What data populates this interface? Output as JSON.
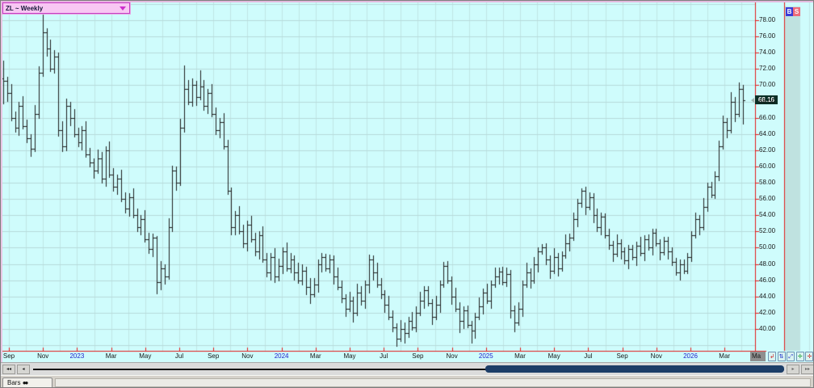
{
  "symbol_selector": {
    "label": "ZL ~ Weekly"
  },
  "trade_buttons": {
    "buy_label": "B",
    "sell_label": "S"
  },
  "price_flag": {
    "value": "68.16"
  },
  "x_axis": {
    "current_label": "Ma",
    "labels": [
      {
        "text": "Sep",
        "type": "month"
      },
      {
        "text": "Nov",
        "type": "month"
      },
      {
        "text": "2023",
        "type": "year"
      },
      {
        "text": "Mar",
        "type": "month"
      },
      {
        "text": "May",
        "type": "month"
      },
      {
        "text": "Jul",
        "type": "month"
      },
      {
        "text": "Sep",
        "type": "month"
      },
      {
        "text": "Nov",
        "type": "month"
      },
      {
        "text": "2024",
        "type": "year"
      },
      {
        "text": "Mar",
        "type": "month"
      },
      {
        "text": "May",
        "type": "month"
      },
      {
        "text": "Jul",
        "type": "month"
      },
      {
        "text": "Sep",
        "type": "month"
      },
      {
        "text": "Nov",
        "type": "month"
      },
      {
        "text": "2025",
        "type": "year"
      },
      {
        "text": "Mar",
        "type": "month"
      },
      {
        "text": "May",
        "type": "month"
      },
      {
        "text": "Jul",
        "type": "month"
      },
      {
        "text": "Sep",
        "type": "month"
      },
      {
        "text": "Nov",
        "type": "month"
      },
      {
        "text": "2026",
        "type": "year"
      },
      {
        "text": "Mar",
        "type": "month"
      }
    ]
  },
  "nav_buttons": [
    {
      "name": "scale-reset-button",
      "glyph": "↲",
      "color": "#cc2222"
    },
    {
      "name": "auto-scale-button",
      "glyph": "⇅",
      "color": "#2233cc"
    },
    {
      "name": "zoom-x-button",
      "glyph": "⤢",
      "color": "#2233cc"
    },
    {
      "name": "zoom-in-button",
      "glyph": "✛",
      "color": "#119922"
    },
    {
      "name": "zoom-out-button",
      "glyph": "✛",
      "color": "#cc2222"
    }
  ],
  "scrollbar": {
    "buttons": [
      {
        "name": "scroll-left-fast-button",
        "glyph": "◂◂"
      },
      {
        "name": "scroll-left-button",
        "glyph": "◂"
      },
      {
        "name": "scroll-right-button",
        "glyph": "▸"
      },
      {
        "name": "scroll-right-fast-button",
        "glyph": "▸▸"
      }
    ]
  },
  "tabs": [
    {
      "label": "Bars",
      "icon": "●●"
    }
  ],
  "colors": {
    "background": "#cffcfc",
    "grid_h": "#b6dada",
    "grid_v": "#c0e6e4",
    "axis_red": "#e41b1b",
    "bar": "#1e1e1e",
    "strip": "#bfe2e0",
    "thumb": "#1d3e68",
    "dropdown_bg": "#f8c7f3",
    "dropdown_border": "#c33fc3",
    "flag_bg": "#0b2f26",
    "buy_bg": "#3b3bd6",
    "sell_bg": "#ee6b7a",
    "year_label": "#2121cc"
  },
  "chart_data": {
    "type": "ohlc-bar",
    "title": "ZL ~ Weekly",
    "symbol": "ZL",
    "interval": "Weekly",
    "last_price": 68.16,
    "x_range": [
      "Sep 2022",
      "May 2026"
    ],
    "ylim": [
      37.5,
      79.0
    ],
    "y_ticks": [
      78,
      76,
      74,
      72,
      70,
      68,
      66,
      64,
      62,
      60,
      58,
      56,
      54,
      52,
      50,
      48,
      46,
      44,
      42,
      40
    ],
    "grid": true,
    "bars_format": [
      "open",
      "high",
      "low",
      "close"
    ],
    "bars": [
      [
        70.8,
        73.0,
        67.7,
        70.5
      ],
      [
        70.5,
        71.0,
        68.0,
        69.0
      ],
      [
        69.0,
        70.1,
        65.6,
        66.0
      ],
      [
        66.0,
        66.8,
        64.2,
        64.8
      ],
      [
        64.8,
        68.0,
        63.8,
        67.5
      ],
      [
        67.5,
        68.6,
        64.6,
        65.0
      ],
      [
        65.0,
        65.8,
        62.9,
        63.5
      ],
      [
        63.5,
        64.0,
        61.2,
        62.2
      ],
      [
        62.2,
        67.6,
        61.8,
        66.5
      ],
      [
        66.5,
        72.3,
        65.9,
        71.5
      ],
      [
        71.5,
        78.7,
        71.0,
        76.5
      ],
      [
        76.5,
        77.0,
        73.5,
        74.5
      ],
      [
        74.5,
        75.6,
        71.6,
        72.0
      ],
      [
        72.0,
        74.3,
        71.4,
        73.5
      ],
      [
        73.5,
        74.0,
        63.7,
        64.5
      ],
      [
        64.5,
        65.6,
        61.8,
        62.5
      ],
      [
        62.5,
        68.3,
        61.9,
        67.5
      ],
      [
        67.5,
        68.0,
        65.0,
        66.0
      ],
      [
        66.0,
        67.1,
        63.6,
        64.0
      ],
      [
        64.0,
        64.8,
        62.4,
        63.0
      ],
      [
        63.0,
        65.0,
        62.0,
        64.5
      ],
      [
        64.5,
        65.6,
        61.1,
        61.5
      ],
      [
        61.5,
        62.3,
        59.9,
        60.5
      ],
      [
        60.5,
        61.0,
        58.5,
        59.5
      ],
      [
        59.5,
        62.1,
        59.1,
        61.0
      ],
      [
        61.0,
        61.8,
        57.9,
        58.5
      ],
      [
        58.5,
        62.5,
        57.5,
        62.0
      ],
      [
        62.0,
        63.1,
        58.6,
        59.0
      ],
      [
        59.0,
        59.8,
        56.9,
        57.5
      ],
      [
        57.5,
        59.0,
        56.5,
        58.5
      ],
      [
        58.5,
        59.6,
        55.6,
        56.0
      ],
      [
        56.0,
        56.8,
        54.2,
        54.8
      ],
      [
        54.8,
        56.7,
        53.8,
        56.2
      ],
      [
        56.2,
        57.3,
        53.6,
        54.0
      ],
      [
        54.0,
        54.8,
        51.9,
        52.5
      ],
      [
        52.5,
        54.0,
        51.5,
        53.5
      ],
      [
        53.5,
        54.6,
        50.6,
        51.0
      ],
      [
        51.0,
        51.8,
        49.2,
        49.8
      ],
      [
        49.8,
        51.7,
        48.8,
        51.2
      ],
      [
        51.2,
        51.4,
        44.3,
        45.8
      ],
      [
        45.8,
        48.3,
        44.8,
        47.5
      ],
      [
        47.5,
        48.0,
        45.5,
        46.5
      ],
      [
        46.5,
        53.6,
        46.1,
        52.5
      ],
      [
        52.5,
        60.1,
        51.9,
        59.5
      ],
      [
        59.5,
        60.0,
        57.0,
        58.0
      ],
      [
        58.0,
        65.9,
        57.6,
        64.8
      ],
      [
        64.8,
        72.4,
        64.2,
        69.5
      ],
      [
        69.5,
        70.6,
        67.6,
        68.0
      ],
      [
        68.0,
        70.8,
        67.4,
        70.0
      ],
      [
        70.0,
        70.5,
        67.5,
        68.5
      ],
      [
        68.5,
        71.8,
        68.1,
        69.8
      ],
      [
        69.8,
        70.6,
        66.9,
        67.5
      ],
      [
        67.5,
        69.5,
        66.5,
        69.0
      ],
      [
        69.0,
        70.1,
        66.1,
        66.5
      ],
      [
        66.5,
        67.3,
        63.9,
        64.5
      ],
      [
        64.5,
        66.0,
        63.5,
        65.5
      ],
      [
        65.5,
        66.6,
        62.1,
        62.5
      ],
      [
        62.5,
        63.3,
        56.5,
        57.0
      ],
      [
        57.0,
        57.4,
        51.5,
        52.5
      ],
      [
        52.5,
        54.5,
        51.5,
        54.0
      ],
      [
        54.0,
        55.1,
        51.6,
        52.0
      ],
      [
        52.0,
        52.8,
        49.9,
        50.5
      ],
      [
        50.5,
        53.3,
        49.5,
        52.8
      ],
      [
        52.8,
        53.9,
        50.6,
        51.0
      ],
      [
        51.0,
        51.8,
        48.9,
        49.5
      ],
      [
        49.5,
        52.0,
        48.5,
        51.5
      ],
      [
        51.5,
        52.6,
        48.1,
        48.5
      ],
      [
        48.5,
        49.3,
        46.4,
        47.0
      ],
      [
        47.0,
        49.3,
        46.0,
        48.8
      ],
      [
        48.8,
        49.9,
        45.7,
        46.5
      ],
      [
        46.5,
        48.6,
        45.9,
        47.8
      ],
      [
        47.8,
        50.0,
        46.8,
        49.5
      ],
      [
        49.5,
        50.6,
        47.1,
        47.5
      ],
      [
        47.5,
        49.3,
        46.9,
        48.5
      ],
      [
        48.5,
        49.0,
        46.0,
        47.0
      ],
      [
        47.0,
        48.1,
        45.6,
        46.0
      ],
      [
        46.0,
        48.0,
        45.4,
        47.2
      ],
      [
        47.2,
        47.7,
        44.2,
        45.2
      ],
      [
        45.2,
        46.3,
        43.1,
        44.3
      ],
      [
        44.3,
        46.3,
        43.9,
        45.5
      ],
      [
        45.5,
        48.5,
        44.5,
        48.0
      ],
      [
        48.0,
        49.3,
        47.0,
        48.8
      ],
      [
        48.8,
        49.2,
        47.1,
        47.5
      ],
      [
        47.5,
        49.1,
        46.9,
        48.5
      ],
      [
        48.5,
        49.0,
        45.5,
        46.5
      ],
      [
        46.5,
        47.6,
        44.8,
        45.2
      ],
      [
        45.2,
        46.0,
        43.2,
        43.8
      ],
      [
        43.8,
        44.3,
        41.5,
        42.5
      ],
      [
        42.5,
        44.6,
        42.1,
        43.5
      ],
      [
        43.5,
        44.0,
        40.8,
        42.0
      ],
      [
        42.0,
        45.6,
        41.6,
        44.5
      ],
      [
        44.5,
        45.3,
        42.9,
        43.5
      ],
      [
        43.5,
        46.0,
        42.5,
        45.5
      ],
      [
        45.5,
        49.1,
        44.4,
        48.5
      ],
      [
        48.5,
        49.0,
        46.0,
        47.0
      ],
      [
        47.0,
        48.1,
        45.1,
        45.5
      ],
      [
        45.5,
        46.3,
        43.7,
        44.3
      ],
      [
        44.3,
        44.8,
        42.0,
        43.0
      ],
      [
        43.0,
        44.1,
        41.1,
        41.5
      ],
      [
        41.5,
        42.3,
        39.6,
        40.2
      ],
      [
        40.2,
        40.7,
        37.8,
        38.8
      ],
      [
        38.8,
        41.1,
        38.4,
        40.0
      ],
      [
        40.0,
        40.8,
        38.2,
        39.5
      ],
      [
        39.5,
        41.5,
        38.9,
        41.0
      ],
      [
        41.0,
        42.1,
        39.8,
        40.2
      ],
      [
        40.2,
        42.8,
        39.6,
        42.0
      ],
      [
        42.0,
        44.6,
        41.6,
        43.5
      ],
      [
        43.5,
        45.3,
        42.5,
        44.8
      ],
      [
        44.8,
        45.3,
        42.8,
        43.2
      ],
      [
        43.2,
        43.7,
        40.5,
        41.5
      ],
      [
        41.5,
        44.1,
        41.1,
        43.0
      ],
      [
        43.0,
        46.0,
        42.0,
        45.5
      ],
      [
        45.5,
        48.2,
        45.1,
        47.8
      ],
      [
        47.8,
        48.3,
        45.6,
        46.0
      ],
      [
        46.0,
        46.5,
        43.0,
        44.0
      ],
      [
        44.0,
        45.1,
        42.1,
        42.5
      ],
      [
        42.5,
        43.3,
        39.5,
        41.0
      ],
      [
        41.0,
        42.8,
        40.0,
        42.3
      ],
      [
        42.3,
        42.9,
        40.1,
        40.5
      ],
      [
        40.5,
        41.0,
        38.2,
        39.8
      ],
      [
        39.8,
        42.0,
        38.8,
        41.5
      ],
      [
        41.5,
        43.9,
        41.1,
        42.8
      ],
      [
        42.8,
        45.0,
        41.8,
        44.5
      ],
      [
        44.5,
        45.6,
        43.1,
        43.5
      ],
      [
        43.5,
        46.0,
        42.5,
        45.5
      ],
      [
        45.5,
        47.6,
        45.1,
        46.5
      ],
      [
        46.5,
        47.6,
        45.5,
        47.1
      ],
      [
        47.1,
        47.7,
        45.4,
        45.8
      ],
      [
        45.8,
        47.6,
        45.2,
        46.8
      ],
      [
        46.8,
        47.3,
        41.3,
        42.3
      ],
      [
        42.3,
        42.9,
        39.6,
        40.8
      ],
      [
        40.8,
        43.3,
        40.4,
        42.5
      ],
      [
        42.5,
        46.0,
        41.5,
        45.5
      ],
      [
        45.5,
        48.1,
        45.1,
        47.0
      ],
      [
        47.0,
        47.5,
        45.0,
        46.0
      ],
      [
        46.0,
        48.8,
        45.6,
        48.0
      ],
      [
        48.0,
        50.0,
        47.0,
        49.5
      ],
      [
        49.5,
        50.4,
        49.1,
        50.0
      ],
      [
        50.0,
        50.5,
        47.9,
        48.5
      ],
      [
        48.5,
        49.0,
        46.2,
        47.2
      ],
      [
        47.2,
        49.9,
        46.8,
        48.8
      ],
      [
        48.8,
        49.3,
        46.5,
        47.5
      ],
      [
        47.5,
        49.5,
        47.1,
        49.0
      ],
      [
        49.0,
        51.6,
        48.6,
        50.5
      ],
      [
        50.5,
        51.7,
        49.5,
        51.2
      ],
      [
        51.2,
        54.3,
        50.8,
        53.5
      ],
      [
        53.5,
        56.0,
        52.5,
        55.5
      ],
      [
        55.5,
        57.3,
        54.9,
        57.0
      ],
      [
        57.0,
        57.5,
        54.0,
        55.0
      ],
      [
        55.0,
        56.8,
        54.6,
        56.2
      ],
      [
        56.2,
        56.7,
        53.0,
        54.0
      ],
      [
        54.0,
        54.8,
        51.9,
        52.5
      ],
      [
        52.5,
        54.3,
        51.5,
        53.8
      ],
      [
        53.8,
        54.2,
        51.1,
        51.5
      ],
      [
        51.5,
        52.3,
        49.7,
        50.3
      ],
      [
        50.3,
        50.8,
        48.2,
        49.2
      ],
      [
        49.2,
        51.6,
        48.8,
        50.5
      ],
      [
        50.5,
        51.0,
        48.5,
        49.5
      ],
      [
        49.5,
        50.0,
        48.0,
        48.4
      ],
      [
        48.4,
        50.3,
        47.4,
        49.8
      ],
      [
        49.8,
        50.3,
        48.4,
        48.8
      ],
      [
        48.8,
        50.7,
        47.8,
        50.2
      ],
      [
        50.2,
        51.3,
        48.9,
        49.3
      ],
      [
        49.3,
        51.5,
        48.3,
        51.0
      ],
      [
        51.0,
        51.6,
        49.6,
        50.0
      ],
      [
        50.0,
        52.3,
        49.0,
        51.8
      ],
      [
        51.8,
        52.3,
        50.1,
        50.5
      ],
      [
        50.5,
        51.0,
        48.4,
        49.4
      ],
      [
        49.4,
        51.3,
        49.0,
        50.8
      ],
      [
        50.8,
        51.3,
        48.5,
        49.5
      ],
      [
        49.5,
        50.0,
        47.8,
        48.2
      ],
      [
        48.2,
        48.7,
        46.6,
        47.0
      ],
      [
        47.0,
        48.5,
        46.0,
        48.0
      ],
      [
        48.0,
        48.5,
        46.8,
        47.2
      ],
      [
        47.2,
        49.3,
        46.8,
        48.8
      ],
      [
        48.8,
        52.0,
        48.2,
        51.5
      ],
      [
        51.5,
        54.3,
        51.1,
        53.5
      ],
      [
        53.5,
        54.0,
        51.5,
        52.5
      ],
      [
        52.5,
        56.1,
        52.1,
        55.0
      ],
      [
        55.0,
        58.0,
        54.4,
        57.5
      ],
      [
        57.5,
        58.1,
        56.1,
        56.5
      ],
      [
        56.5,
        59.4,
        56.0,
        58.8
      ],
      [
        58.8,
        63.2,
        58.2,
        62.5
      ],
      [
        62.5,
        66.3,
        62.1,
        65.5
      ],
      [
        65.5,
        66.0,
        63.5,
        64.5
      ],
      [
        64.5,
        69.1,
        64.1,
        68.0
      ],
      [
        68.0,
        68.5,
        65.5,
        66.5
      ],
      [
        66.5,
        70.3,
        66.1,
        69.5
      ],
      [
        69.5,
        70.0,
        65.2,
        68.16
      ]
    ]
  }
}
